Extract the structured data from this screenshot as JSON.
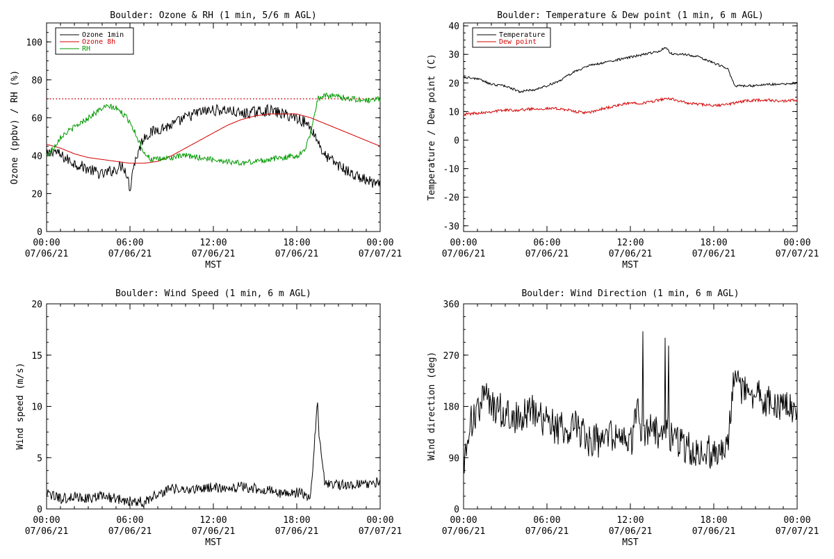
{
  "x_axis": {
    "ticks": [
      {
        "h": 0,
        "time": "00:00",
        "date": "07/06/21"
      },
      {
        "h": 6,
        "time": "06:00",
        "date": "07/06/21"
      },
      {
        "h": 12,
        "time": "12:00",
        "date": "07/06/21"
      },
      {
        "h": 18,
        "time": "18:00",
        "date": "07/06/21"
      },
      {
        "h": 24,
        "time": "00:00",
        "date": "07/07/21"
      }
    ],
    "range_hours": [
      0,
      24
    ],
    "label": "MST"
  },
  "chart_data": [
    {
      "type": "line",
      "title": "Boulder: Ozone & RH (1 min, 5/6 m AGL)",
      "xlabel": "MST",
      "ylabel": "Ozone (ppbv) / RH (%)",
      "ylim": [
        0,
        110
      ],
      "yticks": [
        0,
        20,
        40,
        60,
        80,
        100
      ],
      "reference_line": {
        "y": 70,
        "color": "#d40000",
        "style": "dotted"
      },
      "legend": {
        "placement": "top-left"
      },
      "series": [
        {
          "name": "Ozone 1min",
          "color": "#000000",
          "noise": 3,
          "x": [
            0,
            0.5,
            1,
            2,
            3,
            4,
            5,
            5.5,
            5.8,
            6,
            6.2,
            6.5,
            7,
            8,
            9,
            10,
            11,
            12,
            13,
            14,
            15,
            16,
            17,
            18,
            18.5,
            19,
            19.5,
            20,
            21,
            22,
            23,
            24
          ],
          "values": [
            40,
            43,
            40,
            36,
            33,
            30,
            33,
            35,
            30,
            22,
            33,
            40,
            50,
            54,
            56,
            60,
            63,
            64,
            64,
            62,
            63,
            64,
            62,
            60,
            58,
            55,
            48,
            40,
            35,
            30,
            27,
            24
          ]
        },
        {
          "name": "Ozone 8h",
          "color": "#d40000",
          "noise": 0,
          "x": [
            0,
            1,
            2,
            3,
            4,
            5,
            6,
            7,
            8,
            9,
            10,
            11,
            12,
            13,
            14,
            15,
            16,
            17,
            18,
            19,
            20,
            21,
            22,
            23,
            24
          ],
          "values": [
            46,
            44,
            41,
            39,
            38,
            37,
            36,
            36,
            37,
            40,
            44,
            48,
            52,
            56,
            59,
            61,
            62,
            62,
            62,
            60,
            57,
            54,
            51,
            48,
            45
          ]
        },
        {
          "name": "RH",
          "color": "#009900",
          "noise": 1.5,
          "x": [
            0,
            0.5,
            1,
            2,
            3,
            4,
            4.5,
            5,
            5.5,
            6,
            6.5,
            7,
            7.5,
            8,
            9,
            10,
            11,
            12,
            13,
            14,
            15,
            16,
            17,
            18,
            18.5,
            19,
            19.5,
            20,
            21,
            22,
            23,
            24
          ],
          "values": [
            40,
            44,
            50,
            55,
            60,
            65,
            66,
            65,
            62,
            58,
            50,
            42,
            38,
            38,
            39,
            40,
            39,
            38,
            37,
            36,
            37,
            38,
            39,
            40,
            42,
            52,
            70,
            72,
            71,
            70,
            69,
            70
          ]
        }
      ]
    },
    {
      "type": "line",
      "title": "Boulder: Temperature & Dew point (1 min, 6 m AGL)",
      "xlabel": "MST",
      "ylabel": "Temperature / Dew point (C)",
      "ylim": [
        -32,
        41
      ],
      "yticks": [
        -30,
        -20,
        -10,
        0,
        10,
        20,
        30,
        40
      ],
      "legend": {
        "placement": "top-left"
      },
      "series": [
        {
          "name": "Temperature",
          "color": "#000000",
          "noise": 0.4,
          "x": [
            0,
            1,
            2,
            3,
            4,
            5,
            6,
            7,
            8,
            9,
            10,
            11,
            12,
            13,
            14,
            14.5,
            15,
            16,
            17,
            18,
            18.5,
            19,
            19.5,
            20,
            21,
            22,
            23,
            24
          ],
          "values": [
            22,
            21.5,
            19.5,
            19,
            17,
            17.5,
            19,
            21,
            24,
            26,
            27,
            28,
            29,
            30,
            31,
            32.5,
            30,
            30,
            29,
            27,
            26,
            25,
            19,
            19,
            19,
            19.5,
            19.5,
            20
          ]
        },
        {
          "name": "Dew point",
          "color": "#d40000",
          "noise": 0.5,
          "x": [
            0,
            1,
            2,
            3,
            4,
            5,
            6,
            7,
            8,
            9,
            10,
            11,
            12,
            13,
            14,
            15,
            16,
            17,
            18,
            19,
            20,
            21,
            22,
            23,
            24
          ],
          "values": [
            9,
            9.5,
            10,
            10.5,
            10.5,
            11,
            11,
            11,
            10,
            9.5,
            11,
            12,
            13,
            13,
            14,
            14.5,
            13,
            12.5,
            12,
            12.5,
            13.5,
            14,
            14,
            13.5,
            14
          ]
        }
      ]
    },
    {
      "type": "line",
      "title": "Boulder: Wind Speed (1 min, 6 m AGL)",
      "xlabel": "MST",
      "ylabel": "Wind speed (m/s)",
      "ylim": [
        0,
        20
      ],
      "yticks": [
        0,
        5,
        10,
        15,
        20
      ],
      "series": [
        {
          "name": "",
          "color": "#000000",
          "noise": 0.5,
          "x": [
            0,
            1,
            2,
            3,
            4,
            5,
            6,
            7,
            8,
            9,
            10,
            11,
            12,
            13,
            14,
            15,
            16,
            17,
            18,
            19,
            19.5,
            19.6,
            19.8,
            20,
            21,
            22,
            23,
            24
          ],
          "values": [
            1.5,
            1,
            1.2,
            1,
            1.3,
            1,
            0.8,
            0.7,
            1.5,
            2,
            1.8,
            2,
            2.1,
            1.9,
            2.2,
            2,
            1.8,
            1.5,
            1.6,
            1.2,
            10.7,
            7,
            5,
            2.5,
            2.3,
            2.4,
            2.5,
            2.6
          ]
        }
      ]
    },
    {
      "type": "line",
      "title": "Boulder: Wind Direction (1 min, 6 m AGL)",
      "xlabel": "MST",
      "ylabel": "Wind direction (deg)",
      "ylim": [
        0,
        360
      ],
      "yticks": [
        0,
        90,
        180,
        270,
        360
      ],
      "series": [
        {
          "name": "",
          "color": "#000000",
          "noise": 30,
          "x": [
            0,
            0.5,
            1,
            1.5,
            2,
            3,
            4,
            5,
            6,
            7,
            8,
            9,
            10,
            11,
            12,
            12.5,
            13,
            13.5,
            14,
            14.5,
            15,
            16,
            17,
            18,
            19,
            19.5,
            20,
            21,
            22,
            23,
            24
          ],
          "values": [
            80,
            150,
            170,
            200,
            180,
            170,
            160,
            175,
            150,
            140,
            145,
            120,
            120,
            130,
            110,
            170,
            120,
            140,
            130,
            150,
            120,
            110,
            100,
            100,
            120,
            240,
            210,
            200,
            190,
            185,
            180
          ]
        }
      ]
    }
  ]
}
